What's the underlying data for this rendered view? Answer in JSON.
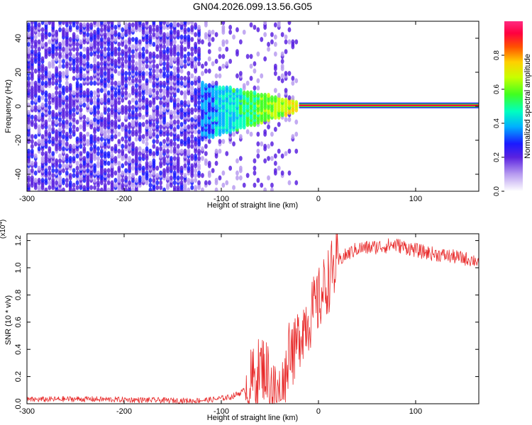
{
  "title": "GN04.2026.099.13.56.G05",
  "chart_data": [
    {
      "type": "heatmap",
      "name": "spectrogram",
      "xlabel": "Height of straight line (km)",
      "ylabel": "Frequency (Hz)",
      "xlim": [
        -300,
        165
      ],
      "ylim": [
        -50,
        50
      ],
      "xticks": [
        -300,
        -200,
        -100,
        0,
        100
      ],
      "yticks": [
        -40,
        -20,
        0,
        20,
        40
      ],
      "colorbar": {
        "label": "Normalized spectral amplitude",
        "range": [
          0.0,
          1.0
        ],
        "ticks": [
          0.0,
          0.2,
          0.4,
          0.6,
          0.8
        ]
      },
      "features": {
        "noise_region_km": [
          -300,
          -120
        ],
        "tapering_region_km": [
          -120,
          -20
        ],
        "carrier_line_km": [
          -20,
          165
        ],
        "carrier_frequency_hz": 0.5,
        "carrier_amplitude": 0.93
      }
    },
    {
      "type": "line",
      "name": "snr",
      "xlabel": "Height of straight line (km)",
      "ylabel": "SNR (10 * v/v)",
      "y_multiplier": "(x10",
      "y_multiplier_exp": "4",
      "xlim": [
        -300,
        165
      ],
      "ylim": [
        0.0,
        1.25
      ],
      "xticks": [
        -300,
        -200,
        -100,
        0,
        100
      ],
      "yticks": [
        0.0,
        0.2,
        0.4,
        0.6,
        0.8,
        1.0,
        1.2
      ],
      "color": "#e82a2a",
      "series": [
        {
          "name": "SNR",
          "x": [
            -300,
            -250,
            -200,
            -160,
            -130,
            -110,
            -90,
            -75,
            -65,
            -58,
            -52,
            -48,
            -45,
            -42,
            -38,
            -35,
            -32,
            -30,
            -28,
            -27,
            -25,
            -22,
            -20,
            -17,
            -14,
            -10,
            -6,
            -2,
            2,
            8,
            15,
            22,
            30,
            40,
            55,
            70,
            78,
            90,
            105,
            120,
            140,
            165
          ],
          "y": [
            0.03,
            0.035,
            0.03,
            0.025,
            0.022,
            0.03,
            0.05,
            0.1,
            0.2,
            0.28,
            0.22,
            0.15,
            0.08,
            0.05,
            0.08,
            0.15,
            0.3,
            0.45,
            0.5,
            0.4,
            0.35,
            0.45,
            0.5,
            0.55,
            0.6,
            0.62,
            0.68,
            0.72,
            0.78,
            0.88,
            0.98,
            1.06,
            1.1,
            1.14,
            1.15,
            1.16,
            1.17,
            1.15,
            1.12,
            1.1,
            1.08,
            1.05
          ]
        }
      ]
    }
  ]
}
